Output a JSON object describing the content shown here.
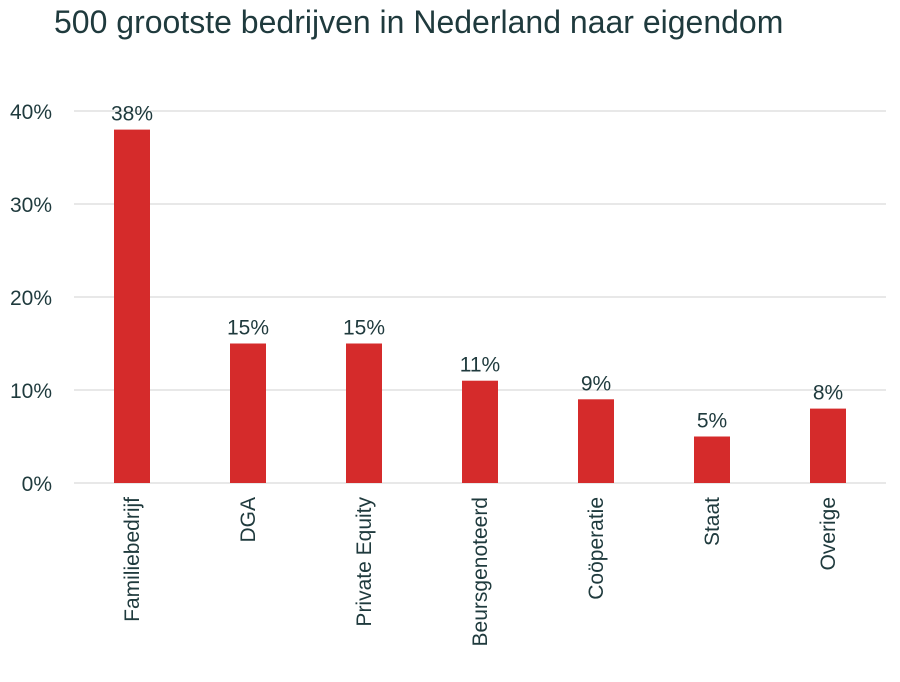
{
  "chart_data": {
    "type": "bar",
    "title": "500 grootste bedrijven in Nederland naar eigendom",
    "xlabel": "",
    "ylabel": "",
    "categories": [
      "Familiebedrijf",
      "DGA",
      "Private Equity",
      "Beursgenoteerd",
      "Coöperatie",
      "Staat",
      "Overige"
    ],
    "values": [
      38,
      15,
      15,
      11,
      9,
      5,
      8
    ],
    "value_labels": [
      "38%",
      "15%",
      "15%",
      "11%",
      "9%",
      "5%",
      "8%"
    ],
    "ylim": [
      0,
      40
    ],
    "yticks": [
      0,
      10,
      20,
      30,
      40
    ],
    "ytick_labels": [
      "0%",
      "10%",
      "20%",
      "30%",
      "40%"
    ],
    "grid": true,
    "legend": "none",
    "bar_color": "#d52b2b",
    "grid_color": "#d9d9d9",
    "text_color": "#1f3a3d"
  }
}
